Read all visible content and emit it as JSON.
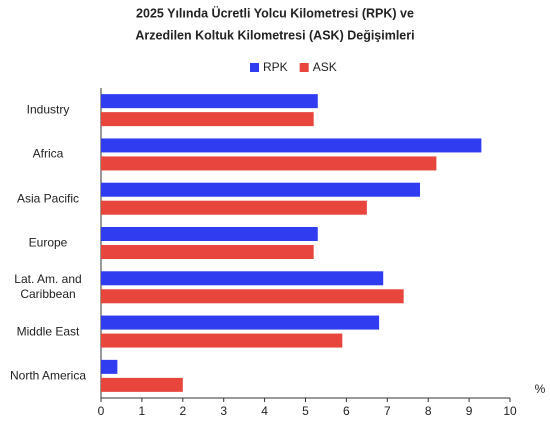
{
  "chart_data": {
    "type": "bar",
    "orientation": "horizontal",
    "title": "2025 Yılında Ücretli Yolcu Kilometresi (RPK) ve",
    "subtitle": "Arzedilen Koltuk Kilometresi (ASK) Değişimleri",
    "x_label": "%",
    "categories": [
      "Industry",
      "Africa",
      "Asia Pacific",
      "Europe",
      "Lat. Am. and Caribbean",
      "Middle East",
      "North America"
    ],
    "series": [
      {
        "name": "RPK",
        "color": "#2f3cf0",
        "values": [
          5.3,
          9.3,
          7.8,
          5.3,
          6.9,
          6.8,
          0.4
        ]
      },
      {
        "name": "ASK",
        "color": "#e8453c",
        "values": [
          5.2,
          8.2,
          6.5,
          5.2,
          7.4,
          5.9,
          2.0
        ]
      }
    ],
    "xlim": [
      0,
      10
    ],
    "xticks": [
      0,
      1,
      2,
      3,
      4,
      5,
      6,
      7,
      8,
      9,
      10
    ],
    "legend": "top"
  }
}
